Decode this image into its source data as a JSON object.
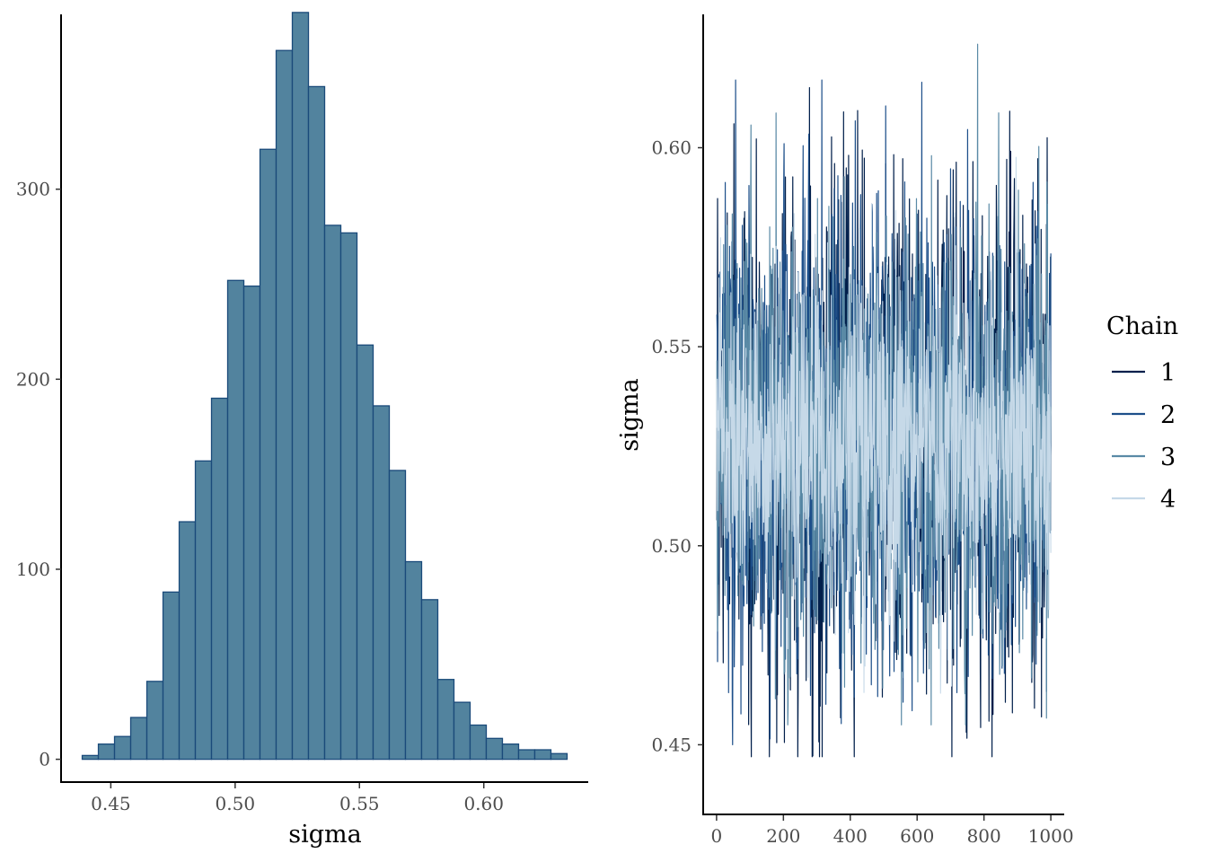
{
  "chart_data": [
    {
      "type": "bar",
      "variant": "histogram",
      "xlabel": "sigma",
      "ylabel": "",
      "bin_width": 0.0065,
      "bin_start": 0.4385,
      "xlim": [
        0.43,
        0.642
      ],
      "ylim": [
        -12,
        392
      ],
      "xticks": [
        0.45,
        0.5,
        0.55,
        0.6
      ],
      "xtick_labels": [
        "0.45",
        "0.50",
        "0.55",
        "0.60"
      ],
      "yticks": [
        0,
        100,
        200,
        300
      ],
      "ytick_labels": [
        "0",
        "100",
        "200",
        "300"
      ],
      "values": [
        2,
        8,
        12,
        22,
        41,
        88,
        125,
        157,
        190,
        252,
        249,
        321,
        373,
        393,
        354,
        281,
        277,
        218,
        186,
        152,
        104,
        84,
        42,
        30,
        18,
        11,
        8,
        5,
        5,
        3
      ],
      "fill_color": "#52839e",
      "edge_color": "#1a4a7a",
      "grid": false
    },
    {
      "type": "line",
      "variant": "trace",
      "xlabel": "",
      "ylabel": "sigma",
      "xlim": [
        -40,
        1040
      ],
      "ylim": [
        0.4325,
        0.6335
      ],
      "xticks": [
        0,
        200,
        400,
        600,
        800,
        1000
      ],
      "xtick_labels": [
        "0",
        "200",
        "400",
        "600",
        "800",
        "1000"
      ],
      "yticks": [
        0.45,
        0.5,
        0.55,
        0.6
      ],
      "ytick_labels": [
        "0.45",
        "0.50",
        "0.55",
        "0.60"
      ],
      "legend_title": "Chain",
      "legend_position": "right",
      "grid": false,
      "series": [
        {
          "name": "1",
          "color": "#011f4b",
          "mean": 0.5275,
          "sd": 0.032,
          "min": 0.447,
          "max": 0.621
        },
        {
          "name": "2",
          "color": "#1d4f8a",
          "mean": 0.527,
          "sd": 0.03,
          "min": 0.45,
          "max": 0.617
        },
        {
          "name": "3",
          "color": "#5a8aa6",
          "mean": 0.526,
          "sd": 0.027,
          "min": 0.455,
          "max": 0.626
        },
        {
          "name": "4",
          "color": "#c6d9e8",
          "mean": 0.5255,
          "sd": 0.02,
          "min": 0.441,
          "max": 0.627
        }
      ],
      "iterations": 1000
    }
  ]
}
